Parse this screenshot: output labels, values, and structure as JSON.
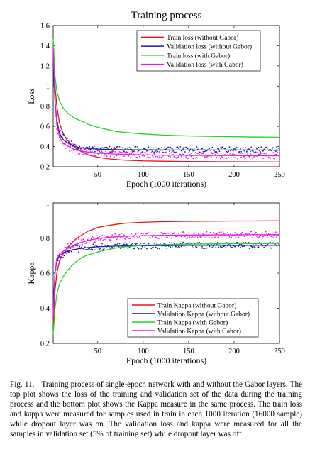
{
  "chart_data": [
    {
      "type": "line",
      "title": "Training process",
      "xlabel": "Epoch (1000 iterations)",
      "ylabel": "Loss",
      "xlim": [
        1,
        250
      ],
      "ylim": [
        0.2,
        1.6
      ],
      "xticks": [
        50,
        100,
        150,
        200,
        250
      ],
      "yticks": [
        0.2,
        0.4,
        0.6,
        0.8,
        1,
        1.2,
        1.4,
        1.6
      ],
      "ytick_labels": [
        "0.2",
        "0.4",
        "0.6",
        "0.8",
        "1",
        "1.2",
        "1.4",
        "1.6"
      ],
      "legend_position": "top-right",
      "grid": false,
      "series": [
        {
          "name": "Train loss (without Gabor)",
          "color": "#e8141a",
          "markers": false,
          "x": [
            1,
            3,
            5,
            8,
            12,
            16,
            20,
            25,
            30,
            35,
            40,
            50,
            60,
            70,
            80,
            100,
            120,
            150,
            180,
            200,
            220,
            250
          ],
          "y": [
            1.35,
            1.0,
            0.8,
            0.63,
            0.53,
            0.47,
            0.43,
            0.39,
            0.36,
            0.335,
            0.315,
            0.295,
            0.28,
            0.272,
            0.265,
            0.258,
            0.255,
            0.252,
            0.25,
            0.249,
            0.248,
            0.247
          ]
        },
        {
          "name": "Validation loss (without Gabor)",
          "color": "#1a1aa6",
          "markers": true,
          "x": [
            1,
            3,
            5,
            8,
            12,
            16,
            20,
            25,
            30,
            35,
            40,
            50,
            60,
            70,
            80,
            100,
            120,
            150,
            180,
            200,
            220,
            250
          ],
          "y": [
            1.22,
            0.85,
            0.66,
            0.53,
            0.47,
            0.44,
            0.42,
            0.4,
            0.39,
            0.385,
            0.38,
            0.375,
            0.372,
            0.37,
            0.369,
            0.368,
            0.367,
            0.366,
            0.366,
            0.366,
            0.366,
            0.365
          ]
        },
        {
          "name": "Train loss (with Gabor)",
          "color": "#22d422",
          "markers": false,
          "x": [
            1,
            3,
            5,
            8,
            12,
            16,
            20,
            25,
            30,
            35,
            40,
            50,
            60,
            70,
            80,
            100,
            120,
            150,
            180,
            200,
            220,
            250
          ],
          "y": [
            1.47,
            1.1,
            0.95,
            0.85,
            0.78,
            0.74,
            0.71,
            0.68,
            0.66,
            0.64,
            0.62,
            0.59,
            0.57,
            0.55,
            0.54,
            0.525,
            0.515,
            0.505,
            0.5,
            0.498,
            0.495,
            0.493
          ]
        },
        {
          "name": "Validation loss (with Gabor)",
          "color": "#e619e6",
          "markers": true,
          "x": [
            1,
            3,
            5,
            8,
            12,
            16,
            20,
            25,
            30,
            35,
            40,
            50,
            60,
            70,
            80,
            100,
            120,
            150,
            180,
            200,
            220,
            250
          ],
          "y": [
            1.38,
            0.85,
            0.62,
            0.49,
            0.43,
            0.41,
            0.39,
            0.37,
            0.36,
            0.35,
            0.345,
            0.335,
            0.33,
            0.325,
            0.322,
            0.318,
            0.315,
            0.313,
            0.312,
            0.311,
            0.31,
            0.31
          ]
        }
      ]
    },
    {
      "type": "line",
      "title": "",
      "xlabel": "Epoch (1000 iterations)",
      "ylabel": "Kappa",
      "xlim": [
        1,
        250
      ],
      "ylim": [
        0.2,
        1
      ],
      "xticks": [
        50,
        100,
        150,
        200,
        250
      ],
      "yticks": [
        0.2,
        0.4,
        0.6,
        0.8,
        1
      ],
      "ytick_labels": [
        "0.2",
        "0.4",
        "0.6",
        "0.8",
        "1"
      ],
      "legend_position": "bottom-right",
      "grid": false,
      "series": [
        {
          "name": "Train Kappa (without Gabor)",
          "color": "#e8141a",
          "markers": false,
          "x": [
            1,
            3,
            5,
            8,
            12,
            16,
            20,
            25,
            30,
            35,
            40,
            50,
            60,
            70,
            80,
            100,
            120,
            150,
            180,
            200,
            220,
            250
          ],
          "y": [
            0.3,
            0.5,
            0.6,
            0.67,
            0.71,
            0.74,
            0.765,
            0.79,
            0.81,
            0.825,
            0.84,
            0.86,
            0.87,
            0.878,
            0.884,
            0.89,
            0.893,
            0.895,
            0.896,
            0.897,
            0.897,
            0.898
          ]
        },
        {
          "name": "Validation Kappa (without Gabor)",
          "color": "#1a1aa6",
          "markers": true,
          "x": [
            1,
            3,
            5,
            8,
            12,
            16,
            20,
            25,
            30,
            35,
            40,
            50,
            60,
            70,
            80,
            100,
            120,
            150,
            180,
            200,
            220,
            250
          ],
          "y": [
            0.42,
            0.6,
            0.67,
            0.7,
            0.715,
            0.725,
            0.73,
            0.735,
            0.74,
            0.743,
            0.746,
            0.75,
            0.752,
            0.754,
            0.755,
            0.756,
            0.757,
            0.758,
            0.758,
            0.758,
            0.758,
            0.758
          ]
        },
        {
          "name": "Train Kappa (with Gabor)",
          "color": "#22d422",
          "markers": false,
          "x": [
            1,
            3,
            5,
            8,
            12,
            16,
            20,
            25,
            30,
            35,
            40,
            50,
            60,
            70,
            80,
            100,
            120,
            150,
            180,
            200,
            220,
            250
          ],
          "y": [
            0.25,
            0.4,
            0.48,
            0.54,
            0.58,
            0.61,
            0.635,
            0.66,
            0.68,
            0.695,
            0.705,
            0.72,
            0.733,
            0.743,
            0.75,
            0.758,
            0.762,
            0.765,
            0.767,
            0.768,
            0.768,
            0.769
          ]
        },
        {
          "name": "Validation Kappa (with Gabor)",
          "color": "#e619e6",
          "markers": true,
          "x": [
            1,
            3,
            5,
            8,
            12,
            16,
            20,
            25,
            30,
            35,
            40,
            50,
            60,
            70,
            80,
            100,
            120,
            150,
            180,
            200,
            220,
            250
          ],
          "y": [
            0.35,
            0.6,
            0.68,
            0.71,
            0.725,
            0.737,
            0.748,
            0.762,
            0.772,
            0.78,
            0.787,
            0.797,
            0.803,
            0.807,
            0.81,
            0.813,
            0.815,
            0.817,
            0.818,
            0.818,
            0.819,
            0.819
          ]
        }
      ]
    }
  ],
  "caption": {
    "label": "Fig. 11.",
    "text": "Training process of single-epoch network with and without the Gabor layers. The top plot shows the loss of the training and validation set of the data during the training process and the bottom plot shows the Kappa measure in the same process. The train loss and kappa were measured for samples used in train in each 1000 iteration (16000 sample) while dropout layer was on. The validation loss and kappa were measured for all the samples in validation set (5% of training set) while dropout layer was off."
  }
}
